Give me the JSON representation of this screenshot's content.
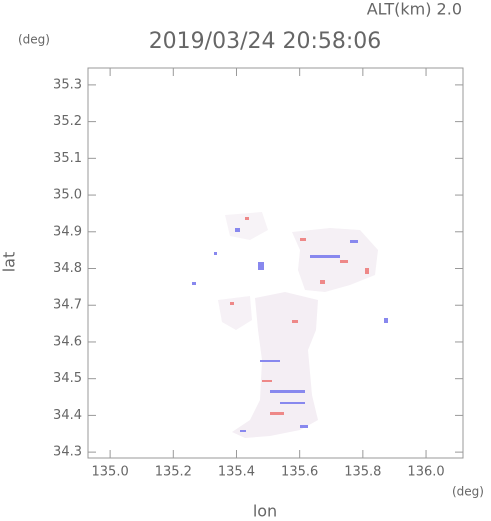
{
  "header": {
    "altitude": "ALT(km) 2.0",
    "timestamp": "2019/03/24 20:58:06"
  },
  "chart_data": {
    "type": "scatter",
    "xlabel": "lon",
    "ylabel": "lat",
    "x_unit": "(deg)",
    "y_unit": "(deg)",
    "xlim": [
      134.93,
      136.117
    ],
    "ylim": [
      34.284,
      35.346
    ],
    "xticks": [
      {
        "value": 135.0,
        "label": "135.0"
      },
      {
        "value": 135.2,
        "label": "135.2"
      },
      {
        "value": 135.4,
        "label": "135.4"
      },
      {
        "value": 135.6,
        "label": "135.6"
      },
      {
        "value": 135.8,
        "label": "135.8"
      },
      {
        "value": 136.0,
        "label": "136.0"
      }
    ],
    "yticks": [
      35.3,
      35.2,
      35.1,
      {
        "value": 35.0,
        "label": "35.0"
      },
      34.9,
      34.8,
      34.7,
      34.6,
      34.5,
      34.4,
      34.3
    ]
  }
}
